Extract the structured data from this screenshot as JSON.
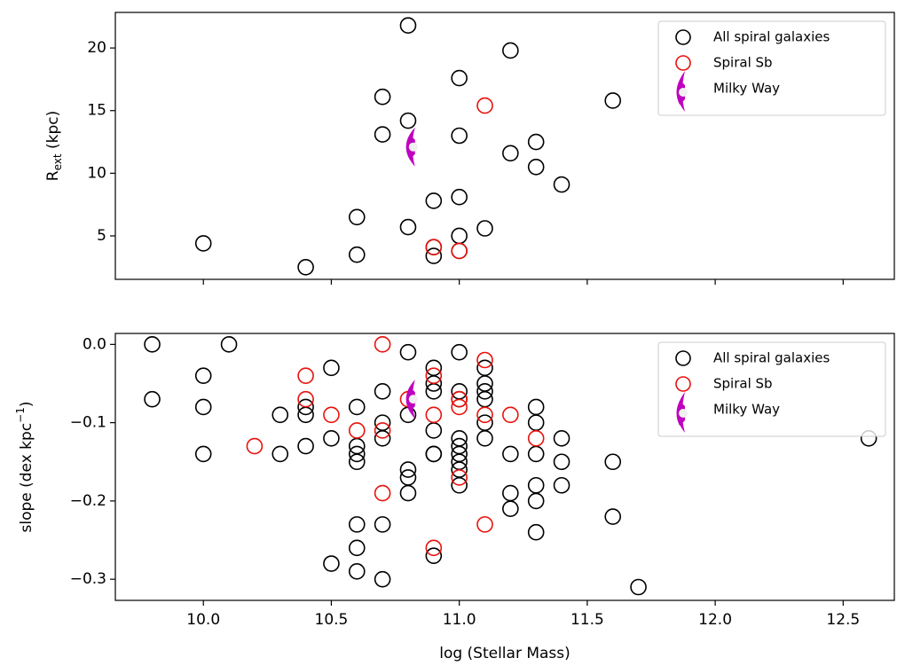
{
  "chart_data": [
    {
      "type": "scatter",
      "ylabel": [
        {
          "text": "R"
        },
        {
          "text": "ext",
          "shift": "sub"
        },
        {
          "text": " (kpc)"
        }
      ],
      "xlim": [
        9.656,
        12.7
      ],
      "ylim": [
        1.53,
        22.84
      ],
      "xticks": [
        10,
        10.5,
        11,
        11.5,
        12,
        12.5
      ],
      "show_xtick_labels": false,
      "yticks": [
        5,
        10,
        15,
        20
      ],
      "legend": "upper right",
      "series": [
        {
          "name": "All spiral galaxies",
          "color": "#000000",
          "marker": "circle",
          "x": [
            10.0,
            10.4,
            10.6,
            10.6,
            10.7,
            10.7,
            10.8,
            10.8,
            10.8,
            10.9,
            10.9,
            10.9,
            11.0,
            11.0,
            11.0,
            11.0,
            11.0,
            11.1,
            11.2,
            11.2,
            11.3,
            11.3,
            11.4,
            11.6
          ],
          "values": [
            4.4,
            2.5,
            6.5,
            3.5,
            16.1,
            13.1,
            21.8,
            14.2,
            5.7,
            7.8,
            3.4,
            4.1,
            17.6,
            13.0,
            8.1,
            5.0,
            3.8,
            5.6,
            19.8,
            11.6,
            12.5,
            10.5,
            9.1,
            15.8
          ]
        },
        {
          "name": "Spiral Sb",
          "color": "#e8120c",
          "marker": "circle",
          "x": [
            10.9,
            11.0,
            11.1
          ],
          "values": [
            4.1,
            3.8,
            15.4
          ]
        },
        {
          "name": "Milky Way",
          "color": "#bf00bf",
          "marker": "crescent",
          "x": [
            10.82
          ],
          "values": [
            12.1
          ]
        }
      ]
    },
    {
      "type": "scatter",
      "xlabel": "log (Stellar Mass)",
      "ylabel": [
        {
          "text": "slope (dex kpc"
        },
        {
          "text": "−1",
          "shift": "sup"
        },
        {
          "text": ")"
        }
      ],
      "xlim": [
        9.656,
        12.7
      ],
      "ylim": [
        -0.327,
        0.014
      ],
      "xticks": [
        {
          "value": 10,
          "label": "10.0"
        },
        10.5,
        {
          "value": 11,
          "label": "11.0"
        },
        11.5,
        {
          "value": 12,
          "label": "12.0"
        },
        12.5
      ],
      "show_xtick_labels": true,
      "yticks": [
        {
          "value": 0,
          "label": "0.0"
        },
        {
          "value": -0.1,
          "label": "−0.1"
        },
        {
          "value": -0.2,
          "label": "−0.2"
        },
        {
          "value": -0.3,
          "label": "−0.3"
        }
      ],
      "legend": "upper right",
      "series": [
        {
          "name": "All spiral galaxies",
          "color": "#000000",
          "marker": "circle",
          "x": [
            9.8,
            9.8,
            10.0,
            10.0,
            10.0,
            10.1,
            10.3,
            10.3,
            10.4,
            10.4,
            10.4,
            10.5,
            10.5,
            10.5,
            10.6,
            10.6,
            10.6,
            10.6,
            10.6,
            10.6,
            10.6,
            10.7,
            10.7,
            10.7,
            10.7,
            10.7,
            10.8,
            10.8,
            10.8,
            10.8,
            10.8,
            10.9,
            10.9,
            10.9,
            10.9,
            10.9,
            10.9,
            10.9,
            11.0,
            11.0,
            11.0,
            11.0,
            11.0,
            11.0,
            11.0,
            11.0,
            11.0,
            11.1,
            11.1,
            11.1,
            11.1,
            11.1,
            11.1,
            11.2,
            11.2,
            11.2,
            11.3,
            11.3,
            11.3,
            11.3,
            11.3,
            11.3,
            11.4,
            11.4,
            11.4,
            11.6,
            11.6,
            11.7,
            12.6
          ],
          "values": [
            0.0,
            -0.07,
            -0.04,
            -0.08,
            -0.14,
            0.0,
            -0.09,
            -0.14,
            -0.08,
            -0.09,
            -0.13,
            -0.03,
            -0.12,
            -0.28,
            -0.08,
            -0.13,
            -0.14,
            -0.15,
            -0.23,
            -0.26,
            -0.29,
            -0.06,
            -0.1,
            -0.12,
            -0.23,
            -0.3,
            -0.01,
            -0.09,
            -0.16,
            -0.17,
            -0.19,
            -0.03,
            -0.05,
            -0.06,
            -0.11,
            -0.14,
            -0.14,
            -0.27,
            -0.01,
            -0.06,
            -0.07,
            -0.12,
            -0.13,
            -0.14,
            -0.15,
            -0.16,
            -0.18,
            -0.03,
            -0.05,
            -0.06,
            -0.07,
            -0.1,
            -0.12,
            -0.14,
            -0.19,
            -0.21,
            -0.08,
            -0.1,
            -0.14,
            -0.18,
            -0.2,
            -0.24,
            -0.12,
            -0.15,
            -0.18,
            -0.15,
            -0.22,
            -0.31,
            -0.12
          ]
        },
        {
          "name": "Spiral Sb",
          "color": "#e8120c",
          "marker": "circle",
          "x": [
            10.2,
            10.4,
            10.4,
            10.5,
            10.6,
            10.7,
            10.7,
            10.7,
            10.8,
            10.9,
            10.9,
            10.9,
            11.0,
            11.0,
            11.0,
            11.1,
            11.1,
            11.1,
            11.2,
            11.3
          ],
          "values": [
            -0.13,
            -0.04,
            -0.07,
            -0.09,
            -0.11,
            0.0,
            -0.11,
            -0.19,
            -0.07,
            -0.04,
            -0.09,
            -0.26,
            -0.07,
            -0.08,
            -0.17,
            -0.02,
            -0.09,
            -0.23,
            -0.09,
            -0.12
          ]
        },
        {
          "name": "Milky Way",
          "color": "#bf00bf",
          "marker": "crescent",
          "x": [
            10.82
          ],
          "values": [
            -0.07
          ]
        }
      ]
    }
  ]
}
